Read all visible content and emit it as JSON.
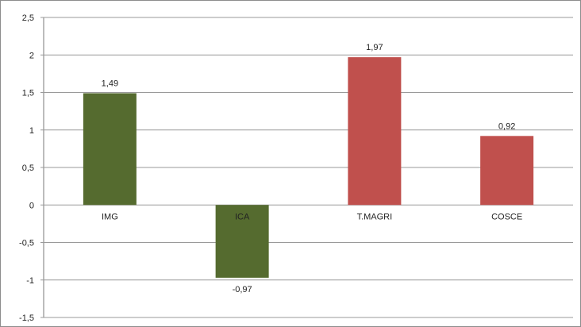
{
  "chart_data": {
    "type": "bar",
    "categories": [
      "IMG",
      "ICA",
      "T.MAGRI",
      "COSCE"
    ],
    "values": [
      1.49,
      -0.97,
      1.97,
      0.92
    ],
    "data_labels": [
      "1,49",
      "-0,97",
      "1,97",
      "0,92"
    ],
    "bar_colors": [
      "#556b2f",
      "#556b2f",
      "#c0504d",
      "#c0504d"
    ],
    "title": "",
    "xlabel": "",
    "ylabel": "",
    "ylim": [
      -1.5,
      2.5
    ],
    "yticks": [
      2.5,
      2,
      1.5,
      1,
      0.5,
      0,
      -0.5,
      -1,
      -1.5
    ],
    "ytick_labels": [
      "2,5",
      "2",
      "1,5",
      "1",
      "0,5",
      "0",
      "-0,5",
      "-1",
      "-1,5"
    ],
    "grid": true,
    "legend": "none"
  }
}
